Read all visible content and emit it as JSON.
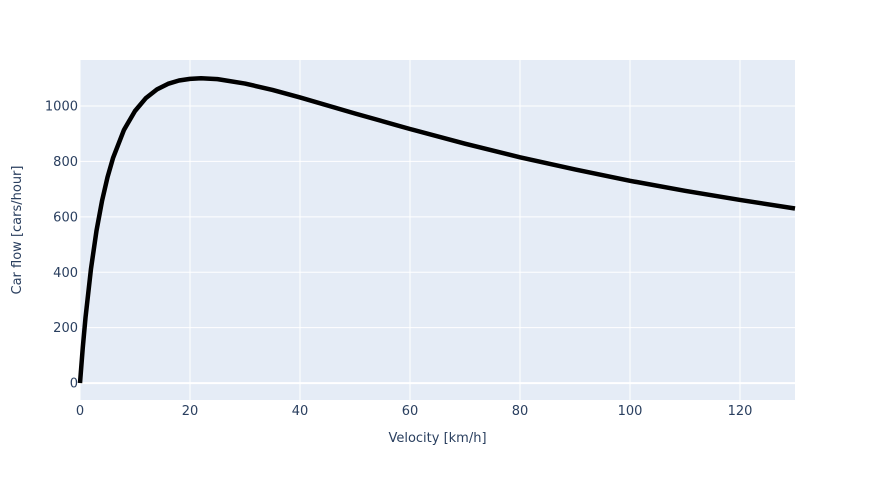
{
  "chart_data": {
    "type": "line",
    "x_label": "Velocity [km/h]",
    "y_label": "Car flow [cars/hour]",
    "x": [
      0,
      0.5,
      1,
      2,
      3,
      4,
      5,
      6,
      8,
      10,
      12,
      14,
      16,
      18,
      20,
      22,
      25,
      30,
      35,
      40,
      50,
      60,
      70,
      80,
      90,
      100,
      110,
      120,
      130
    ],
    "series": [
      {
        "color": "#000000",
        "values": [
          0,
          127,
          236,
          413,
          550,
          657,
          743,
          812,
          914,
          982,
          1029,
          1060,
          1080,
          1092,
          1098,
          1100,
          1097,
          1081,
          1058,
          1031,
          973,
          917,
          864,
          815,
          771,
          730,
          694,
          661,
          630
        ]
      }
    ],
    "xlim": [
      0,
      130
    ],
    "xticks": [
      0,
      20,
      40,
      60,
      80,
      100,
      120
    ],
    "ylim": [
      -61,
      1166
    ],
    "yticks": [
      0,
      200,
      400,
      600,
      800,
      1000
    ],
    "grid": true
  }
}
